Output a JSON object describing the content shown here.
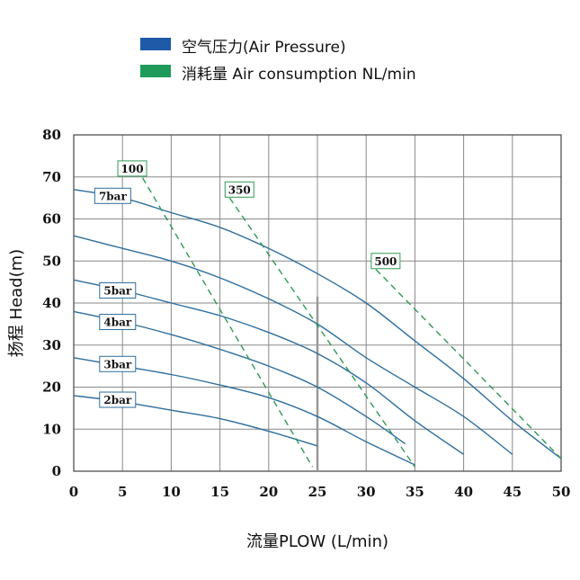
{
  "legend": {
    "items": [
      {
        "label": "空气压力(Air Pressure)",
        "color": "#1e5aa8"
      },
      {
        "label": "消耗量 Air consumption NL/min",
        "color": "#1f9a5a"
      }
    ]
  },
  "colors": {
    "pressure_curve": "#2d6e9e",
    "consumption_curve": "#2e9a55",
    "grid": "#888888",
    "marker": "#999999"
  },
  "chart_data": {
    "type": "line",
    "xlabel": "流量PLOW (L/min)",
    "ylabel": "扬程 Head(m)",
    "xlim": [
      0,
      50
    ],
    "ylim": [
      0,
      80
    ],
    "xticks": [
      0,
      5,
      10,
      15,
      20,
      25,
      30,
      35,
      40,
      45,
      50
    ],
    "yticks": [
      0,
      10,
      20,
      30,
      40,
      50,
      60,
      70,
      80
    ],
    "grid": true,
    "vertical_marker_x": 25,
    "pressure_series": [
      {
        "name": "7bar",
        "label_at": [
          4,
          65.5
        ],
        "points": [
          [
            0,
            67
          ],
          [
            5,
            65
          ],
          [
            10,
            61.5
          ],
          [
            15,
            58
          ],
          [
            20,
            53
          ],
          [
            25,
            47
          ],
          [
            30,
            40
          ],
          [
            35,
            31
          ],
          [
            40,
            22
          ],
          [
            45,
            12
          ],
          [
            50,
            3
          ]
        ]
      },
      {
        "name": "",
        "label_at": null,
        "points": [
          [
            0,
            56
          ],
          [
            5,
            53
          ],
          [
            10,
            50
          ],
          [
            15,
            46
          ],
          [
            20,
            41
          ],
          [
            25,
            35
          ],
          [
            30,
            27
          ],
          [
            35,
            20
          ],
          [
            40,
            13
          ],
          [
            45,
            4
          ]
        ]
      },
      {
        "name": "5bar",
        "label_at": [
          4.5,
          43
        ],
        "points": [
          [
            0,
            45.5
          ],
          [
            5,
            43
          ],
          [
            10,
            40
          ],
          [
            15,
            37
          ],
          [
            20,
            33
          ],
          [
            25,
            28
          ],
          [
            30,
            21
          ],
          [
            35,
            12
          ],
          [
            40,
            4
          ]
        ]
      },
      {
        "name": "4bar",
        "label_at": [
          4.5,
          35.5
        ],
        "points": [
          [
            0,
            38
          ],
          [
            5,
            35.5
          ],
          [
            10,
            32.5
          ],
          [
            15,
            29
          ],
          [
            20,
            25
          ],
          [
            25,
            20
          ],
          [
            30,
            13
          ],
          [
            34,
            6.5
          ]
        ]
      },
      {
        "name": "3bar",
        "label_at": [
          4.5,
          25.5
        ],
        "points": [
          [
            0,
            27
          ],
          [
            5,
            25
          ],
          [
            10,
            23
          ],
          [
            15,
            20.5
          ],
          [
            20,
            17.5
          ],
          [
            25,
            13
          ],
          [
            30,
            7
          ],
          [
            35,
            1.5
          ]
        ]
      },
      {
        "name": "2bar",
        "label_at": [
          4.5,
          17
        ],
        "points": [
          [
            0,
            18
          ],
          [
            5,
            16.5
          ],
          [
            10,
            14.5
          ],
          [
            15,
            12.5
          ],
          [
            20,
            9.5
          ],
          [
            25,
            6
          ]
        ]
      }
    ],
    "consumption_series": [
      {
        "name": "100",
        "label_at": [
          6,
          72
        ],
        "points": [
          [
            6.5,
            72
          ],
          [
            24.5,
            1
          ]
        ]
      },
      {
        "name": "350",
        "label_at": [
          17,
          67
        ],
        "points": [
          [
            16,
            65
          ],
          [
            35,
            1
          ]
        ]
      },
      {
        "name": "500",
        "label_at": [
          32,
          50
        ],
        "points": [
          [
            31,
            48
          ],
          [
            50,
            3
          ]
        ]
      }
    ]
  }
}
